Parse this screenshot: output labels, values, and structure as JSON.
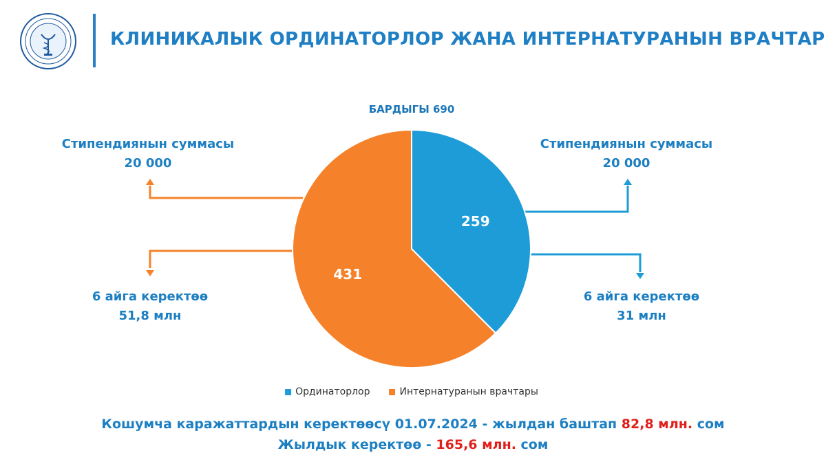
{
  "header": {
    "title": "КЛИНИКАЛЫК ОРДИНАТОРЛОР ЖАНА ИНТЕРНАТУРАНЫН ВРАЧТАРЫ"
  },
  "colors": {
    "ordinators": "#1d9cd8",
    "interns": "#f5822a",
    "accent_red": "#e0201b",
    "text_blue": "#1c7fc2"
  },
  "chart_data": {
    "type": "pie",
    "title": "БАРДЫГЫ 690",
    "slices": [
      {
        "name": "Ординаторлор",
        "value": 259,
        "label": "259"
      },
      {
        "name": "Интернатуранын врачтары",
        "value": 431,
        "label": "431"
      }
    ],
    "legend_position": "bottom"
  },
  "left_callouts": {
    "stipend_label": "Стипендиянын суммасы",
    "stipend_value": "20 000",
    "need_label": "6 айга керектөө",
    "need_value": "51,8 млн"
  },
  "right_callouts": {
    "stipend_label": "Стипендиянын суммасы",
    "stipend_value": "20 000",
    "need_label": "6 айга керектөө",
    "need_value": "31 млн"
  },
  "footer": {
    "line1_text": "Кошумча каражаттардын керектөөсү 01.07.2024 - жылдан баштап",
    "line1_amount": "82,8 млн.",
    "line1_unit": "сом",
    "line2_text": "Жылдык керектөө -",
    "line2_amount": "165,6 млн.",
    "line2_unit": "сом"
  }
}
